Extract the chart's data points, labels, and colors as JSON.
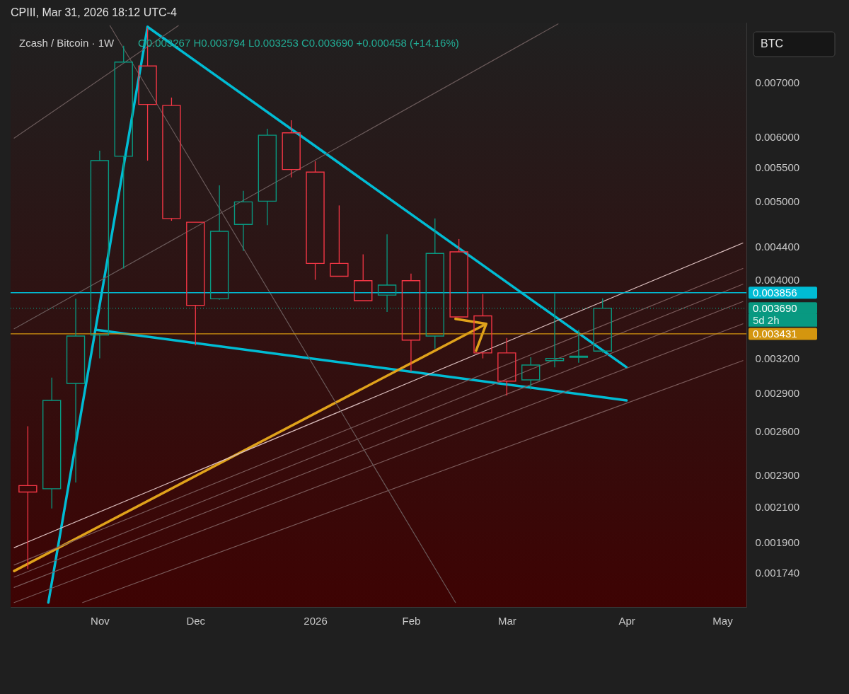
{
  "chart_data": {
    "type": "candlestick",
    "title": "CPIII, Mar 31, 2026 18:12 UTC-4",
    "subtitle": "Zcash / Bitcoin · 1W",
    "x": [
      "2025-10-13",
      "2025-10-20",
      "2025-10-27",
      "2025-11-03",
      "2025-11-10",
      "2025-11-17",
      "2025-11-24",
      "2025-12-01",
      "2025-12-08",
      "2025-12-15",
      "2025-12-22",
      "2025-12-29",
      "2026-01-05",
      "2026-01-12",
      "2026-01-19",
      "2026-01-26",
      "2026-02-02",
      "2026-02-09",
      "2026-02-16",
      "2026-02-23",
      "2026-03-02",
      "2026-03-09",
      "2026-03-16",
      "2026-03-23",
      "2026-03-30"
    ],
    "ohlc": [
      [
        0.00223,
        0.00264,
        0.00176,
        0.00219
      ],
      [
        0.00221,
        0.00303,
        0.00209,
        0.00284
      ],
      [
        0.00298,
        0.00379,
        0.00225,
        0.00341
      ],
      [
        0.00342,
        0.00577,
        0.0032,
        0.00561
      ],
      [
        0.00568,
        0.00777,
        0.00413,
        0.00742
      ],
      [
        0.00734,
        0.00818,
        0.00561,
        0.00658
      ],
      [
        0.00656,
        0.00671,
        0.00473,
        0.00476
      ],
      [
        0.00471,
        0.00471,
        0.00332,
        0.00372
      ],
      [
        0.00379,
        0.00523,
        0.00378,
        0.00459
      ],
      [
        0.00468,
        0.00515,
        0.00434,
        0.00499
      ],
      [
        0.005,
        0.00614,
        0.00467,
        0.00603
      ],
      [
        0.00607,
        0.00629,
        0.00535,
        0.00547
      ],
      [
        0.00543,
        0.0056,
        0.004,
        0.00419
      ],
      [
        0.00419,
        0.00494,
        0.00404,
        0.00404
      ],
      [
        0.00399,
        0.0043,
        0.00377,
        0.00377
      ],
      [
        0.00383,
        0.00455,
        0.00365,
        0.00394
      ],
      [
        0.00399,
        0.00407,
        0.00308,
        0.00337
      ],
      [
        0.00341,
        0.00476,
        0.00329,
        0.00431
      ],
      [
        0.00433,
        0.00449,
        0.0036,
        0.0036
      ],
      [
        0.00361,
        0.00384,
        0.0032,
        0.00325
      ],
      [
        0.00325,
        0.00339,
        0.00288,
        0.003
      ],
      [
        0.00301,
        0.00321,
        0.00293,
        0.00314
      ],
      [
        0.00318,
        0.00385,
        0.00312,
        0.0032
      ],
      [
        0.00321,
        0.00347,
        0.00316,
        0.00322
      ],
      [
        0.003267,
        0.003794,
        0.003253,
        0.00369
      ]
    ],
    "colors": [
      "#f23645",
      "#089981",
      "#089981",
      "#089981",
      "#089981",
      "#f23645",
      "#f23645",
      "#f23645",
      "#089981",
      "#089981",
      "#089981",
      "#f23645",
      "#f23645",
      "#f23645",
      "#f23645",
      "#089981",
      "#f23645",
      "#089981",
      "#f23645",
      "#f23645",
      "#f23645",
      "#089981",
      "#089981",
      "#089981",
      "#089981"
    ],
    "series": [
      {
        "type": "line",
        "color": "#00bcd4",
        "x": [
          "2025-10-19",
          "2025-11-17"
        ],
        "values": [
          0.0016,
          0.0082
        ]
      },
      {
        "type": "line",
        "color": "#00bcd4",
        "x": [
          "2025-11-17",
          "2026-04-06"
        ],
        "values": [
          0.0082,
          0.00312
        ]
      },
      {
        "type": "line",
        "color": "#00bcd4",
        "x": [
          "2025-11-02",
          "2026-04-06"
        ],
        "values": [
          0.00347,
          0.00284
        ]
      },
      {
        "type": "line",
        "color": "#e0a21b",
        "x": [
          "2025-10-09",
          "2026-02-24",
          "2026-02-15",
          "2026-02-24",
          "2026-02-21"
        ],
        "values": [
          0.00175,
          0.00353,
          0.00358,
          0.00353,
          0.00327
        ]
      },
      {
        "type": "line",
        "color": "#d9bcbc",
        "x": [
          "2025-10-09",
          "2026-05-10"
        ],
        "values": [
          0.00187,
          0.00444
        ]
      },
      {
        "type": "line",
        "color": "#7a5a5a",
        "x": [
          "2025-10-09",
          "2026-05-10"
        ],
        "values": [
          0.00178,
          0.00413
        ]
      },
      {
        "type": "line",
        "color": "#7a5a5a",
        "x": [
          "2025-10-09",
          "2026-05-10"
        ],
        "values": [
          0.00172,
          0.00395
        ]
      },
      {
        "type": "line",
        "color": "#7a5a5a",
        "x": [
          "2025-10-09",
          "2026-05-10"
        ],
        "values": [
          0.00167,
          0.00376
        ]
      },
      {
        "type": "line",
        "color": "#7a5a5a",
        "x": [
          "2025-10-09",
          "2026-05-10"
        ],
        "values": [
          0.0016,
          0.00353
        ]
      },
      {
        "type": "line",
        "color": "#7a5a5a",
        "x": [
          "2025-10-29",
          "2026-05-10"
        ],
        "values": [
          0.0016,
          0.00318
        ]
      },
      {
        "type": "line",
        "color": "#6a5a5a",
        "x": [
          "2025-10-09",
          "2025-11-26"
        ],
        "values": [
          0.00598,
          0.00823
        ]
      },
      {
        "type": "line",
        "color": "#6a5a5a",
        "x": [
          "2025-10-09",
          "2026-03-17"
        ],
        "values": [
          0.00348,
          0.00827
        ]
      },
      {
        "type": "line",
        "color": "#6a5a5a",
        "x": [
          "2025-11-06",
          "2026-02-15"
        ],
        "values": [
          0.00823,
          0.0016
        ]
      }
    ],
    "ref_lines": [
      {
        "axis": "y",
        "value": 0.003856,
        "label": "0.003856",
        "color": "#00bcd4"
      },
      {
        "axis": "y",
        "value": 0.00369,
        "label": "0.003690",
        "color": "#089981",
        "line_style": "dotted"
      },
      {
        "axis": "y",
        "value": 0.003431,
        "label": "0.003431",
        "color": "#d4960f"
      }
    ],
    "annotations": [
      "O0.003267 H0.003794 L0.003253 C0.003690 +0.000458 (+14.16%)",
      "BTC",
      "5d 2h"
    ],
    "xlim": [
      "2025-10-09",
      "2026-05-10"
    ],
    "xticks": [
      {
        "value": "2025-11-03",
        "label": "Nov"
      },
      {
        "value": "2025-12-01",
        "label": "Dec"
      },
      {
        "value": "2026-01-05",
        "label": "2026"
      },
      {
        "value": "2026-02-02",
        "label": "Feb"
      },
      {
        "value": "2026-03-02",
        "label": "Mar"
      },
      {
        "value": "2026-04-06",
        "label": "Apr"
      },
      {
        "value": "2026-05-04",
        "label": "May"
      }
    ],
    "ylim": [
      0.00158,
      0.0083
    ],
    "yticks": [
      {
        "value": 0.00174,
        "label": "0.001740"
      },
      {
        "value": 0.0019,
        "label": "0.001900"
      },
      {
        "value": 0.0021,
        "label": "0.002100"
      },
      {
        "value": 0.0023,
        "label": "0.002300"
      },
      {
        "value": 0.0026,
        "label": "0.002600"
      },
      {
        "value": 0.0029,
        "label": "0.002900"
      },
      {
        "value": 0.0032,
        "label": "0.003200"
      },
      {
        "value": 0.004,
        "label": "0.004000"
      },
      {
        "value": 0.0044,
        "label": "0.004400"
      },
      {
        "value": 0.005,
        "label": "0.005000"
      },
      {
        "value": 0.0055,
        "label": "0.005500"
      },
      {
        "value": 0.006,
        "label": "0.006000"
      },
      {
        "value": 0.007,
        "label": "0.007000"
      }
    ],
    "log": true,
    "grid": true
  }
}
